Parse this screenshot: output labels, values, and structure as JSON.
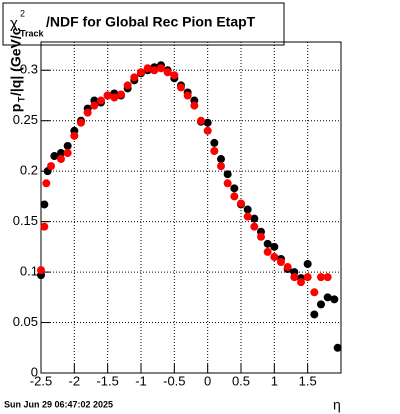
{
  "chart_data": {
    "type": "scatter",
    "title": {
      "symbol": "χ",
      "superscript": "2",
      "subscript": "Track",
      "text": "/NDF for Global Rec Pion EtapT"
    },
    "y_label": {
      "p": "p",
      "sub": "T",
      "rest": "/|q| (GeV/c"
    },
    "x_label": "η",
    "footer": "Sun Jun 29 06:47:02 2025",
    "xlim": [
      -2.5,
      2.0
    ],
    "ylim": [
      0,
      0.328
    ],
    "xticks": [
      -2.5,
      -2,
      -1.5,
      -1,
      -0.5,
      0,
      0.5,
      1,
      1.5
    ],
    "yticks": [
      0,
      0.05,
      0.1,
      0.15,
      0.2,
      0.25,
      0.3
    ],
    "grid": true,
    "series": [
      {
        "color": "#000000",
        "x": [
          -2.5,
          -2.45,
          -2.4,
          -2.3,
          -2.2,
          -2.1,
          -2.0,
          -1.9,
          -1.8,
          -1.7,
          -1.6,
          -1.5,
          -1.4,
          -1.3,
          -1.2,
          -1.1,
          -1.0,
          -0.9,
          -0.8,
          -0.7,
          -0.6,
          -0.5,
          -0.4,
          -0.3,
          -0.2,
          -0.1,
          0,
          0.1,
          0.2,
          0.3,
          0.4,
          0.5,
          0.6,
          0.7,
          0.8,
          0.9,
          1.0,
          1.1,
          1.2,
          1.3,
          1.4,
          1.5,
          1.6,
          1.7,
          1.8,
          1.9,
          1.95
        ],
        "values": [
          0.097,
          0.167,
          0.2,
          0.215,
          0.218,
          0.225,
          0.24,
          0.25,
          0.262,
          0.27,
          0.268,
          0.275,
          0.277,
          0.275,
          0.282,
          0.29,
          0.297,
          0.3,
          0.303,
          0.305,
          0.3,
          0.292,
          0.285,
          0.278,
          0.27,
          0.249,
          0.248,
          0.228,
          0.212,
          0.197,
          0.183,
          0.167,
          0.162,
          0.153,
          0.14,
          0.128,
          0.125,
          0.113,
          0.103,
          0.1,
          0.094,
          0.108,
          0.058,
          0.068,
          0.075,
          0.073,
          0.025
        ]
      },
      {
        "color": "#ff0000",
        "x": [
          -2.5,
          -2.45,
          -2.42,
          -2.35,
          -2.2,
          -2.1,
          -2.0,
          -1.9,
          -1.8,
          -1.7,
          -1.6,
          -1.5,
          -1.4,
          -1.3,
          -1.2,
          -1.1,
          -1.0,
          -0.9,
          -0.8,
          -0.7,
          -0.6,
          -0.5,
          -0.4,
          -0.3,
          -0.2,
          -0.1,
          0,
          0.1,
          0.2,
          0.3,
          0.4,
          0.5,
          0.6,
          0.7,
          0.8,
          0.9,
          1.0,
          1.1,
          1.2,
          1.3,
          1.4,
          1.5,
          1.6,
          1.7,
          1.8
        ],
        "values": [
          0.102,
          0.145,
          0.188,
          0.205,
          0.212,
          0.218,
          0.235,
          0.248,
          0.258,
          0.265,
          0.27,
          0.275,
          0.273,
          0.276,
          0.285,
          0.293,
          0.298,
          0.302,
          0.3,
          0.302,
          0.298,
          0.295,
          0.283,
          0.275,
          0.265,
          0.25,
          0.24,
          0.22,
          0.205,
          0.188,
          0.175,
          0.168,
          0.155,
          0.145,
          0.135,
          0.12,
          0.115,
          0.11,
          0.105,
          0.095,
          0.09,
          0.095,
          0.08,
          0.095,
          0.095
        ]
      }
    ]
  }
}
